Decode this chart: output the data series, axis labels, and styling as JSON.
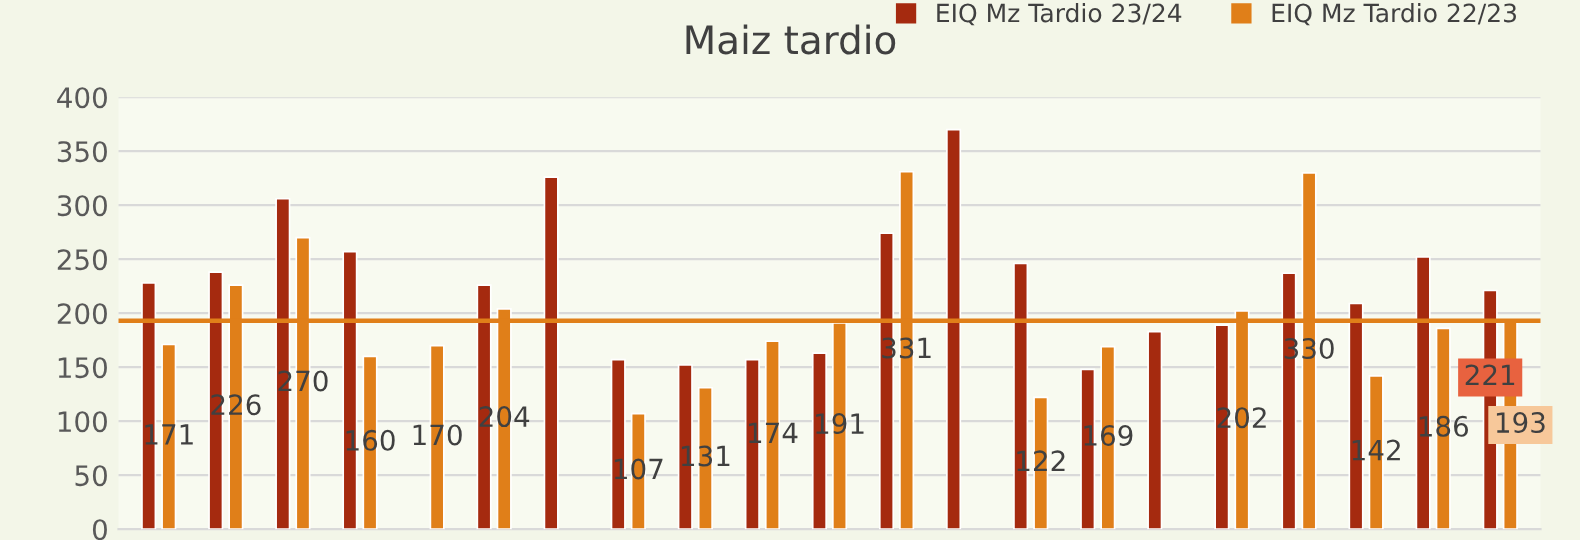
{
  "chart_data": {
    "type": "bar",
    "title": "Maiz tardio",
    "categories": [
      null,
      null,
      null,
      null,
      null,
      null,
      null,
      null,
      null,
      null,
      null,
      null,
      null,
      null,
      null,
      null,
      null,
      null,
      null,
      null,
      null
    ],
    "series": [
      {
        "name": "EIQ Mz Tardio 23/24",
        "color": "#a52a0f",
        "values": [
          228,
          238,
          306,
          257,
          null,
          226,
          326,
          157,
          152,
          157,
          163,
          274,
          370,
          246,
          148,
          183,
          189,
          237,
          209,
          252,
          221
        ],
        "value_labels": [
          null,
          null,
          null,
          null,
          null,
          null,
          null,
          null,
          null,
          null,
          null,
          null,
          null,
          null,
          null,
          null,
          null,
          null,
          null,
          null,
          "221"
        ]
      },
      {
        "name": "EIQ Mz Tardio 22/23",
        "color": "#e07f19",
        "values": [
          171,
          226,
          270,
          160,
          170,
          204,
          null,
          107,
          131,
          174,
          191,
          331,
          null,
          122,
          169,
          null,
          202,
          330,
          142,
          186,
          193
        ],
        "value_labels": [
          "171",
          "226",
          "270",
          "160",
          "170",
          "204",
          null,
          "107",
          "131",
          "174",
          "191",
          "331",
          null,
          "122",
          "169",
          null,
          "202",
          "330",
          "142",
          "186",
          "193"
        ]
      }
    ],
    "ylim": [
      0,
      400
    ],
    "yticks": [
      0,
      50,
      100,
      150,
      200,
      250,
      300,
      350,
      400
    ],
    "grid": "y",
    "legend": "top right",
    "ref_lines": [
      {
        "axis": "y",
        "value": 193,
        "color": "#e07f19"
      }
    ]
  }
}
